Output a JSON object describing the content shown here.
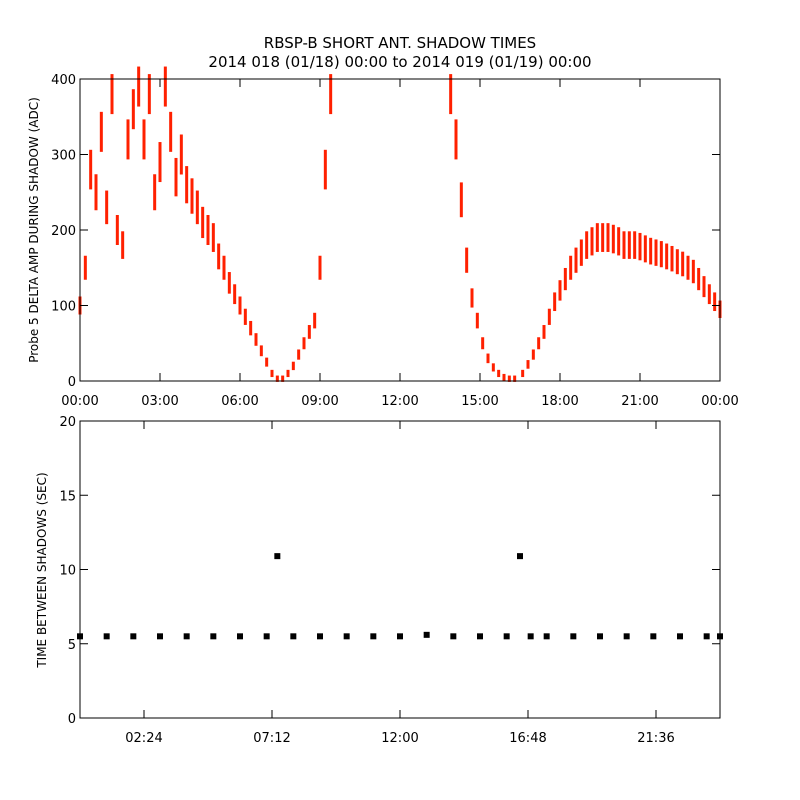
{
  "title": "RBSP-B SHORT ANT. SHADOW TIMES",
  "subtitle": "2014 018 (01/18) 00:00 to 2014 019 (01/19) 00:00",
  "colors": {
    "top_series": "#ff2000",
    "bottom_series": "#000000",
    "axes": "#000000"
  },
  "chart_data": [
    {
      "type": "scatter",
      "ylabel": "Probe 5 DELTA AMP DURING SHADOW (ADC)",
      "xlim": [
        "00:00",
        "24:00"
      ],
      "ylim": [
        0,
        400
      ],
      "x_tick_labels": [
        "00:00",
        "03:00",
        "06:00",
        "09:00",
        "12:00",
        "15:00",
        "18:00",
        "21:00",
        "00:00"
      ],
      "y_tick_labels": [
        "0",
        "100",
        "200",
        "300",
        "400"
      ],
      "grid": false,
      "series": [
        {
          "x_hours": [
            0.0,
            0.2,
            0.4,
            0.6,
            0.8,
            1.0,
            1.2,
            1.4,
            1.6,
            1.8,
            2.0,
            2.2,
            2.4,
            2.6,
            2.8,
            3.0,
            3.2,
            3.4,
            3.6,
            3.8,
            4.0,
            4.2,
            4.4,
            4.6,
            4.8,
            5.0,
            5.2,
            5.4,
            5.6,
            5.8,
            6.0,
            6.2,
            6.4,
            6.6,
            6.8,
            7.0,
            7.2,
            7.4,
            7.6,
            7.8,
            8.0,
            8.2,
            8.4,
            8.6,
            8.8,
            9.0,
            9.2,
            9.4,
            13.9,
            14.1,
            14.3,
            14.5,
            14.7,
            14.9,
            15.1,
            15.3,
            15.5,
            15.7,
            15.9,
            16.1,
            16.3,
            16.6,
            16.8,
            17.0,
            17.2,
            17.4,
            17.6,
            17.8,
            18.0,
            18.2,
            18.4,
            18.6,
            18.8,
            19.0,
            19.2,
            19.4,
            19.6,
            19.8,
            20.0,
            20.2,
            20.4,
            20.6,
            20.8,
            21.0,
            21.2,
            21.4,
            21.6,
            21.8,
            22.0,
            22.2,
            22.4,
            22.6,
            22.8,
            23.0,
            23.2,
            23.4,
            23.6,
            23.8,
            24.0
          ],
          "y_values": [
            100,
            150,
            280,
            250,
            330,
            230,
            380,
            200,
            180,
            320,
            360,
            390,
            320,
            380,
            250,
            290,
            390,
            330,
            270,
            300,
            260,
            245,
            230,
            210,
            200,
            190,
            165,
            150,
            130,
            115,
            100,
            85,
            70,
            55,
            40,
            25,
            10,
            3,
            3,
            10,
            20,
            35,
            50,
            65,
            80,
            150,
            280,
            380,
            380,
            320,
            240,
            160,
            110,
            80,
            50,
            30,
            18,
            10,
            5,
            3,
            3,
            10,
            22,
            35,
            50,
            65,
            85,
            105,
            120,
            135,
            150,
            160,
            170,
            180,
            185,
            190,
            190,
            190,
            188,
            185,
            180,
            180,
            180,
            178,
            175,
            172,
            170,
            168,
            165,
            162,
            158,
            155,
            150,
            145,
            135,
            125,
            115,
            105,
            95
          ]
        }
      ]
    },
    {
      "type": "scatter",
      "ylabel": "TIME BETWEEN SHADOWS (SEC)",
      "xlim": [
        "00:00",
        "24:00"
      ],
      "ylim": [
        0,
        20
      ],
      "x_tick_labels": [
        "02:24",
        "07:12",
        "12:00",
        "16:48",
        "21:36"
      ],
      "y_tick_labels": [
        "0",
        "5",
        "10",
        "15",
        "20"
      ],
      "grid": false,
      "series": [
        {
          "x_hours": [
            0.0,
            1.0,
            2.0,
            3.0,
            4.0,
            5.0,
            6.0,
            7.0,
            7.4,
            8.0,
            9.0,
            10.0,
            11.0,
            12.0,
            13.0,
            14.0,
            15.0,
            16.0,
            16.5,
            16.9,
            17.5,
            18.5,
            19.5,
            20.5,
            21.5,
            22.5,
            23.5,
            24.0
          ],
          "y_values": [
            5.5,
            5.5,
            5.5,
            5.5,
            5.5,
            5.5,
            5.5,
            5.5,
            10.9,
            5.5,
            5.5,
            5.5,
            5.5,
            5.5,
            5.6,
            5.5,
            5.5,
            5.5,
            10.9,
            5.5,
            5.5,
            5.5,
            5.5,
            5.5,
            5.5,
            5.5,
            5.5,
            5.5
          ]
        }
      ]
    }
  ]
}
